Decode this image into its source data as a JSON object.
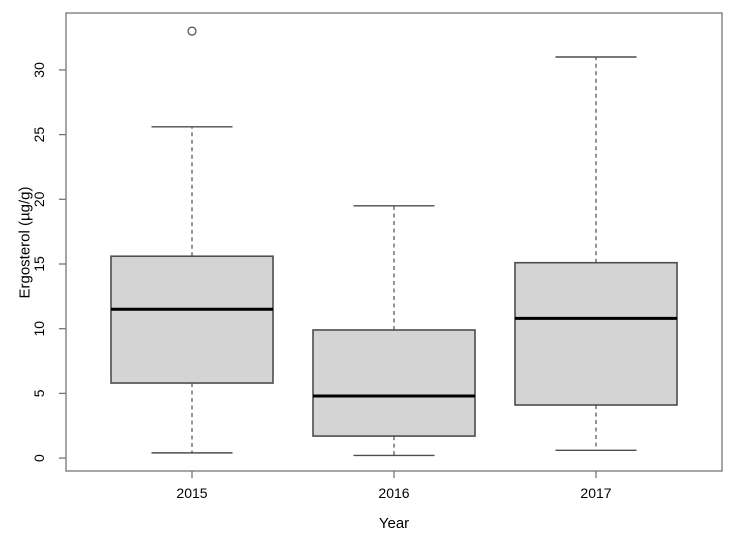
{
  "figure": {
    "background": "#ffffff",
    "frame_color": "#757575",
    "text_color": "#000000"
  },
  "chart_data": {
    "type": "boxplot",
    "title": "",
    "xlabel": "Year",
    "ylabel": "Ergosterol (µg/g)",
    "categories": [
      "2015",
      "2016",
      "2017"
    ],
    "y_ticks": [
      0,
      5,
      10,
      15,
      20,
      25,
      30
    ],
    "ylim": [
      -1,
      34.4
    ],
    "grid": false,
    "legend": null,
    "boxes": [
      {
        "category": "2015",
        "whisker_low": 0.4,
        "q1": 5.8,
        "median": 11.5,
        "q3": 15.6,
        "whisker_high": 25.6,
        "outliers": [
          33.0
        ]
      },
      {
        "category": "2016",
        "whisker_low": 0.2,
        "q1": 1.7,
        "median": 4.8,
        "q3": 9.9,
        "whisker_high": 19.5,
        "outliers": []
      },
      {
        "category": "2017",
        "whisker_low": 0.6,
        "q1": 4.1,
        "median": 10.8,
        "q3": 15.1,
        "whisker_high": 31.0,
        "outliers": []
      }
    ],
    "style": {
      "box_fill": "#d4d4d4",
      "box_border": "#4d4d4d",
      "median_color": "#000000",
      "whisker_color": "#4d4d4d",
      "outlier_color": "#4d4d4d"
    }
  }
}
